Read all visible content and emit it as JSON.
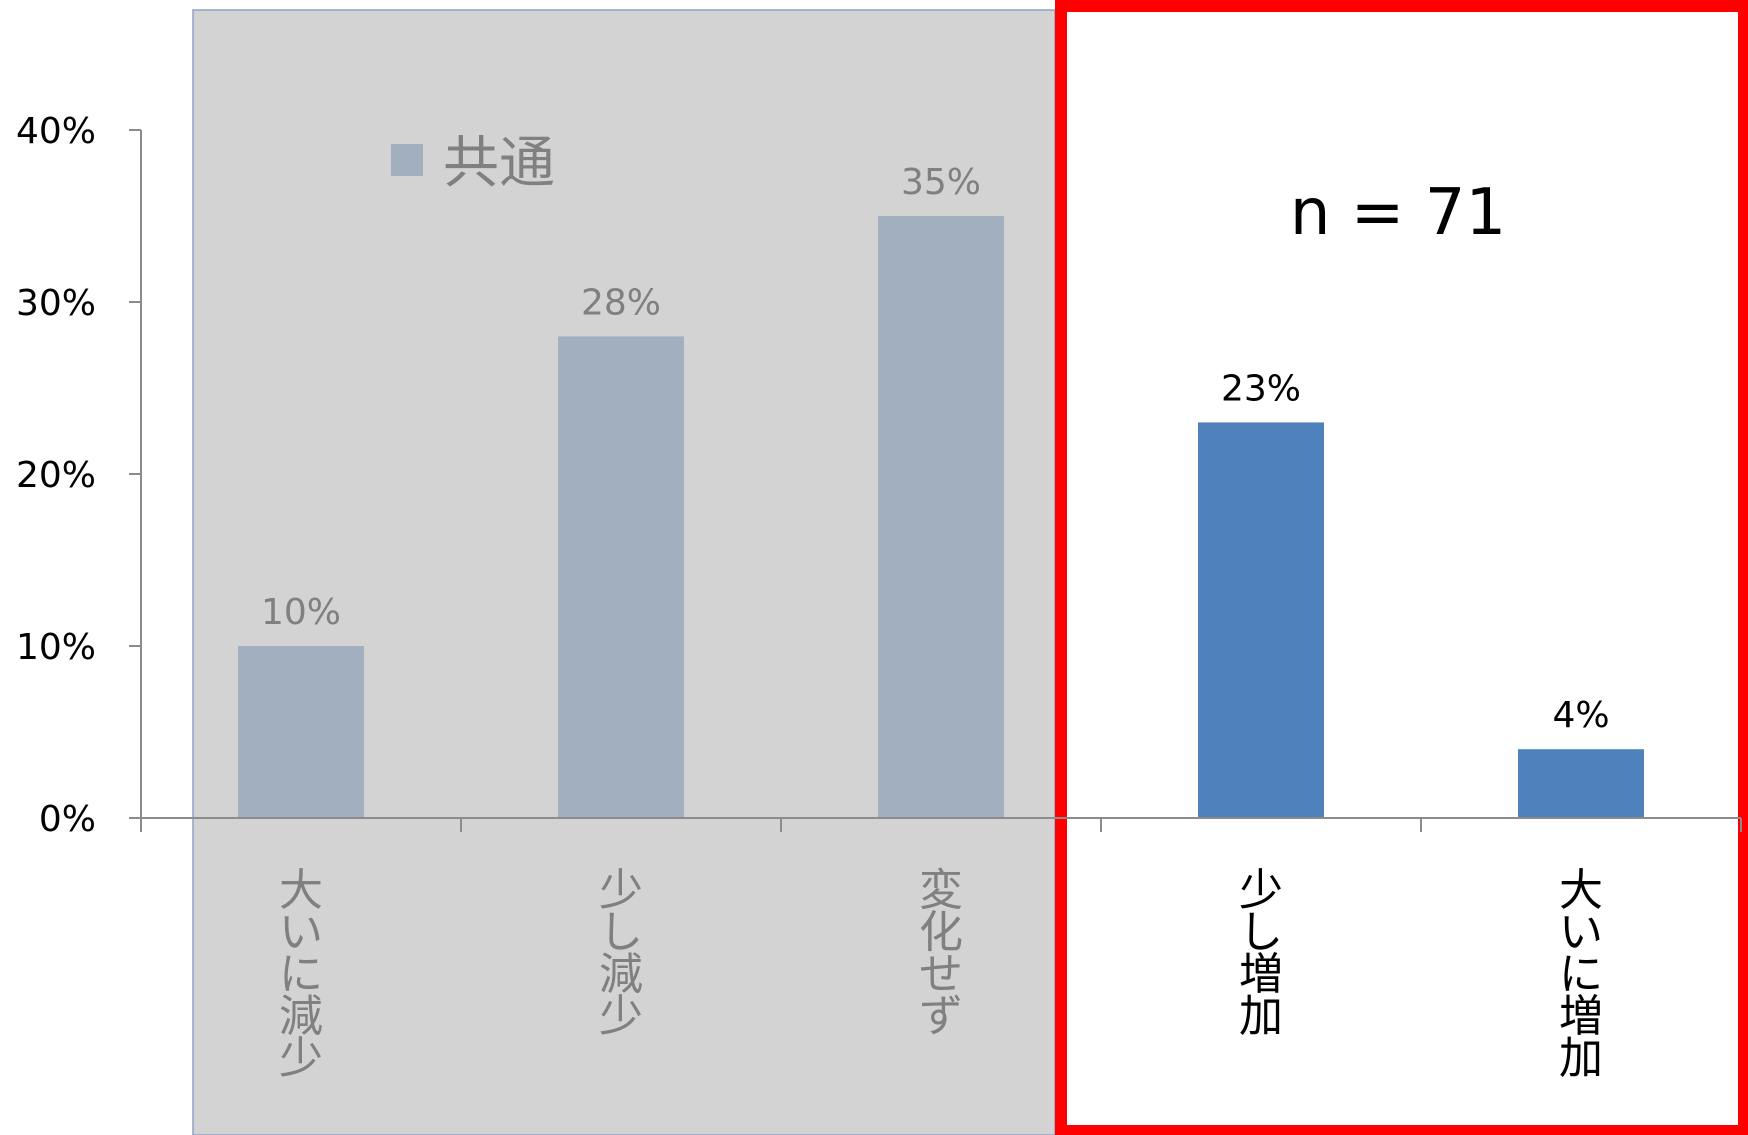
{
  "chart_data": {
    "type": "bar",
    "categories": [
      "大いに減少",
      "少し減少",
      "変化せず",
      "少し増加",
      "大いに増加"
    ],
    "values": [
      10,
      28,
      35,
      23,
      4
    ],
    "value_labels": [
      "10%",
      "28%",
      "35%",
      "23%",
      "4%"
    ],
    "ylim": [
      0,
      40
    ],
    "yticks": [
      0,
      10,
      20,
      30,
      40
    ],
    "ytick_labels": [
      "0%",
      "10%",
      "20%",
      "30%",
      "40%"
    ],
    "legend": {
      "label": "共通",
      "position": "top-left"
    },
    "annotation": "n = 71",
    "grid": false
  },
  "colors": {
    "muted_bar": "#a2afbf",
    "bar": "#4f81bd",
    "muted_region": "#d3d3d3",
    "muted_region_border": "#8ea3c4",
    "muted_text": "#808080",
    "highlight_border": "#ff0000",
    "axis": "#8c8c8c"
  }
}
